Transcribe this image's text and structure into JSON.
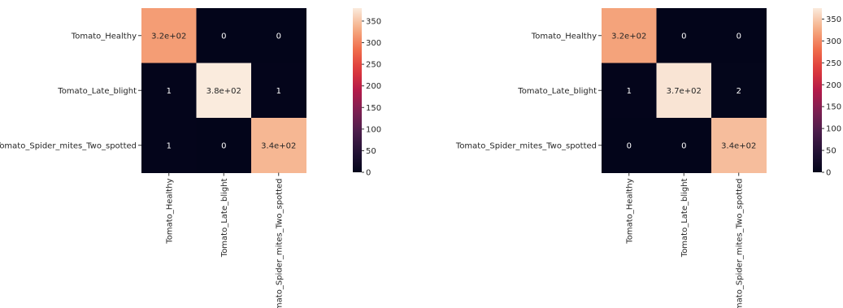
{
  "chart_data": [
    {
      "type": "heatmap",
      "title": "",
      "xlabel": "",
      "ylabel": "",
      "rows": [
        "Tomato_Healthy",
        "Tomato_Late_blight",
        "Tomato_Spider_mites_Two_spotted"
      ],
      "columns": [
        "Tomato_Healthy",
        "Tomato_Late_blight",
        "Tomato_Spider_mites_Two_spotted"
      ],
      "values": [
        [
          320,
          0,
          0
        ],
        [
          1,
          380,
          1
        ],
        [
          1,
          0,
          340
        ]
      ],
      "annotations": [
        [
          "3.2e+02",
          "0",
          "0"
        ],
        [
          "1",
          "3.8e+02",
          "1"
        ],
        [
          "1",
          "0",
          "3.4e+02"
        ]
      ],
      "colorbar": {
        "range": [
          0,
          380
        ],
        "ticks": [
          0,
          50,
          100,
          150,
          200,
          250,
          300,
          350
        ],
        "tick_labels": [
          "0",
          "50",
          "100",
          "150",
          "200",
          "250",
          "300",
          "350"
        ]
      },
      "colormap": "rocket"
    },
    {
      "type": "heatmap",
      "title": "",
      "xlabel": "",
      "ylabel": "",
      "rows": [
        "Tomato_Healthy",
        "Tomato_Late_blight",
        "Tomato_Spider_mites_Two_spotted"
      ],
      "columns": [
        "Tomato_Healthy",
        "Tomato_Late_blight",
        "Tomato_Spider_mites_Two_spotted"
      ],
      "values": [
        [
          320,
          0,
          0
        ],
        [
          1,
          370,
          2
        ],
        [
          0,
          0,
          340
        ]
      ],
      "annotations": [
        [
          "3.2e+02",
          "0",
          "0"
        ],
        [
          "1",
          "3.7e+02",
          "2"
        ],
        [
          "0",
          "0",
          "3.4e+02"
        ]
      ],
      "colorbar": {
        "range": [
          0,
          375
        ],
        "ticks": [
          0,
          50,
          100,
          150,
          200,
          250,
          300,
          350
        ],
        "tick_labels": [
          "0",
          "50",
          "100",
          "150",
          "200",
          "250",
          "300",
          "350"
        ]
      },
      "colormap": "rocket"
    }
  ]
}
